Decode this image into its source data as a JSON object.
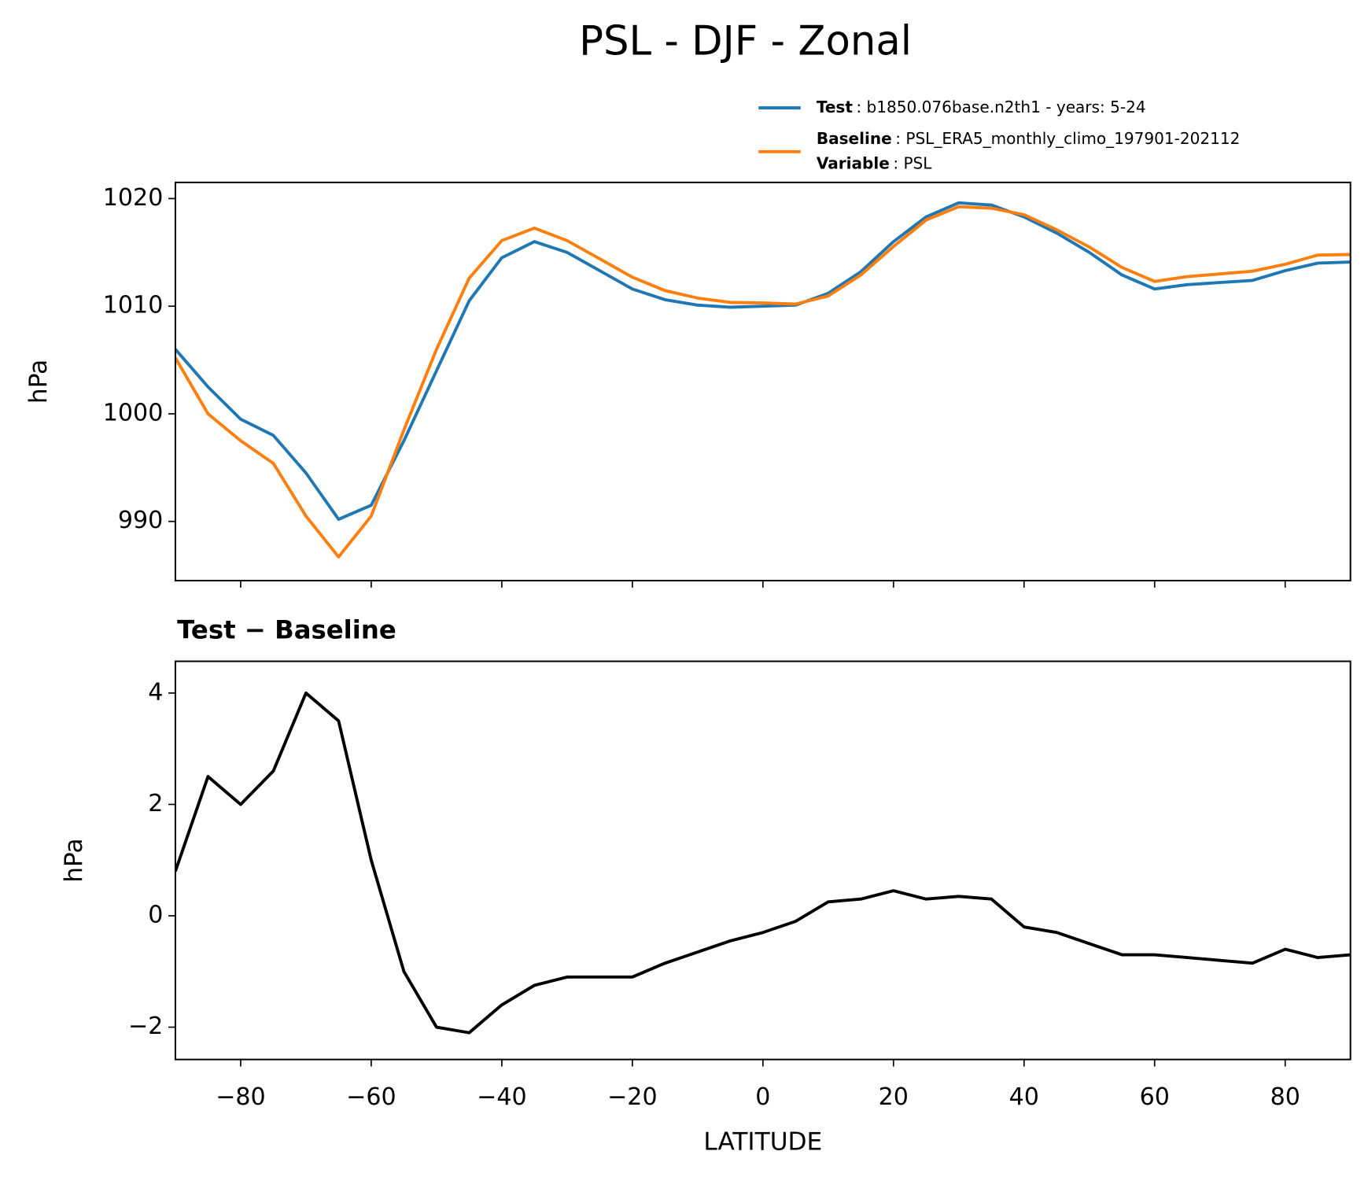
{
  "chart_data": [
    {
      "type": "line",
      "title": "PSL - DJF - Zonal",
      "ylabel": "hPa",
      "x": [
        -90,
        -85,
        -80,
        -75,
        -70,
        -65,
        -60,
        -55,
        -50,
        -45,
        -40,
        -35,
        -30,
        -25,
        -20,
        -15,
        -10,
        -5,
        0,
        5,
        10,
        15,
        20,
        25,
        30,
        35,
        40,
        45,
        50,
        55,
        60,
        65,
        70,
        75,
        80,
        85,
        90
      ],
      "series": [
        {
          "name": "Test",
          "detail": ": b1850.076base.n2th1 - years: 5-24",
          "color": "#1f77b4",
          "values": [
            1006.0,
            1002.5,
            999.5,
            998.0,
            994.5,
            990.2,
            991.5,
            997.5,
            1004.0,
            1010.5,
            1014.5,
            1016.0,
            1015.0,
            1013.3,
            1011.6,
            1010.6,
            1010.1,
            1009.9,
            1010.0,
            1010.1,
            1011.2,
            1013.2,
            1016.0,
            1018.3,
            1019.6,
            1019.4,
            1018.3,
            1016.8,
            1015.0,
            1012.9,
            1011.6,
            1012.0,
            1012.2,
            1012.4,
            1013.3,
            1014.0,
            1014.1
          ]
        },
        {
          "name": "Baseline",
          "detail": ": PSL_ERA5_monthly_climo_197901-202112",
          "color": "#ff7f0e",
          "values": [
            1005.2,
            1000.0,
            997.5,
            995.4,
            990.5,
            986.7,
            990.5,
            998.5,
            1006.0,
            1012.6,
            1016.1,
            1017.25,
            1016.1,
            1014.4,
            1012.7,
            1011.45,
            1010.75,
            1010.35,
            1010.3,
            1010.2,
            1010.95,
            1012.9,
            1015.55,
            1018.0,
            1019.25,
            1019.1,
            1018.5,
            1017.1,
            1015.5,
            1013.6,
            1012.3,
            1012.75,
            1013.0,
            1013.25,
            1013.9,
            1014.75,
            1014.8
          ]
        }
      ],
      "legend_extra": {
        "name": "Variable",
        "detail": ": PSL"
      },
      "xlim": [
        -90,
        90
      ],
      "xticks": [
        -80,
        -60,
        -40,
        -20,
        0,
        20,
        40,
        60,
        80
      ],
      "ylim": [
        984.5,
        1021.5
      ],
      "yticks": [
        990,
        1000,
        1010,
        1020
      ]
    },
    {
      "type": "line",
      "title": "Test − Baseline",
      "ylabel": "hPa",
      "xlabel": "LATITUDE",
      "x": [
        -90,
        -85,
        -80,
        -75,
        -70,
        -65,
        -60,
        -55,
        -50,
        -45,
        -40,
        -35,
        -30,
        -25,
        -20,
        -15,
        -10,
        -5,
        0,
        5,
        10,
        15,
        20,
        25,
        30,
        35,
        40,
        45,
        50,
        55,
        60,
        65,
        70,
        75,
        80,
        85,
        90
      ],
      "series": [
        {
          "name": "Test − Baseline",
          "color": "#000000",
          "values": [
            0.8,
            2.5,
            2.0,
            2.6,
            4.0,
            3.5,
            1.0,
            -1.0,
            -2.0,
            -2.1,
            -1.6,
            -1.25,
            -1.1,
            -1.1,
            -1.1,
            -0.85,
            -0.65,
            -0.45,
            -0.3,
            -0.1,
            0.25,
            0.3,
            0.45,
            0.3,
            0.35,
            0.3,
            -0.2,
            -0.3,
            -0.5,
            -0.7,
            -0.7,
            -0.75,
            -0.8,
            -0.85,
            -0.6,
            -0.75,
            -0.7
          ]
        }
      ],
      "xlim": [
        -90,
        90
      ],
      "xticks": [
        {
          "value": -80,
          "label": "−80"
        },
        {
          "value": -60,
          "label": "−60"
        },
        {
          "value": -40,
          "label": "−40"
        },
        {
          "value": -20,
          "label": "−20"
        },
        0,
        20,
        40,
        60,
        80
      ],
      "ylim": [
        -2.58,
        4.57
      ],
      "yticks": [
        {
          "value": -2,
          "label": "−2"
        },
        0,
        2,
        4
      ]
    }
  ]
}
